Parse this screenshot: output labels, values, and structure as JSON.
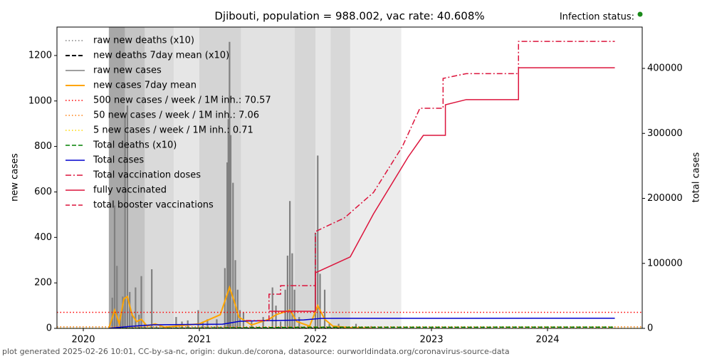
{
  "chart_data": {
    "type": "line",
    "title": "Djibouti, population = 988.002, vac rate: 40.608%",
    "status_label": "Infection status:",
    "status_color": "#1a8a1a",
    "ylabel": "new cases",
    "y2label": "total cases",
    "footer": "plot generated 2025-02-26 10:01, CC-by-sa-nc, origin: dukun.de/corona, datasource: ourworldindata.org/coronavirus-source-data",
    "xlim": [
      2019.773,
      2024.816
    ],
    "xticks": [
      2020,
      2021,
      2022,
      2023,
      2024
    ],
    "ylim": [
      0,
      1325
    ],
    "yticks": [
      0,
      200,
      400,
      600,
      800,
      1000,
      1200
    ],
    "y2lim": [
      0,
      463600
    ],
    "y2ticks": [
      0,
      100000,
      200000,
      300000,
      400000
    ],
    "legend": "upper left",
    "spans": [
      {
        "start": 2020.22,
        "end": 2020.36,
        "color": "#a8a8a8"
      },
      {
        "start": 2020.36,
        "end": 2020.53,
        "color": "#c4c4c4"
      },
      {
        "start": 2020.53,
        "end": 2020.78,
        "color": "#dadada"
      },
      {
        "start": 2020.78,
        "end": 2021.0,
        "color": "#e6e6e6"
      },
      {
        "start": 2021.0,
        "end": 2021.36,
        "color": "#d4d4d4"
      },
      {
        "start": 2021.36,
        "end": 2021.82,
        "color": "#e2e2e2"
      },
      {
        "start": 2021.82,
        "end": 2022.0,
        "color": "#d6d6d6"
      },
      {
        "start": 2022.0,
        "end": 2022.13,
        "color": "#e6e6e6"
      },
      {
        "start": 2022.13,
        "end": 2022.3,
        "color": "#d8d8d8"
      },
      {
        "start": 2022.3,
        "end": 2022.74,
        "color": "#ececec"
      }
    ],
    "series": [
      {
        "name": "raw new deaths (x10)",
        "kind": "line",
        "style": "dotted",
        "color": "#808080",
        "width": 1.5,
        "x": [
          2020.25,
          2022.5
        ],
        "values": [
          0,
          0
        ]
      },
      {
        "name": "new deaths 7day mean (x10)",
        "kind": "line",
        "style": "dashed",
        "color": "#000000",
        "width": 2,
        "x": [
          2020.25,
          2022.5
        ],
        "values": [
          0,
          0
        ]
      },
      {
        "name": "raw new cases",
        "kind": "bars",
        "style": "solid",
        "color": "#808080",
        "width": 1.5,
        "x": [
          2020.25,
          2020.27,
          2020.29,
          2020.32,
          2020.34,
          2020.36,
          2020.38,
          2020.4,
          2020.42,
          2020.45,
          2020.48,
          2020.5,
          2020.53,
          2020.59,
          2020.63,
          2020.8,
          2020.85,
          2020.9,
          2020.99,
          2021.03,
          2021.07,
          2021.15,
          2021.22,
          2021.24,
          2021.25,
          2021.26,
          2021.27,
          2021.29,
          2021.31,
          2021.33,
          2021.35,
          2021.38,
          2021.45,
          2021.55,
          2021.63,
          2021.66,
          2021.7,
          2021.74,
          2021.76,
          2021.78,
          2021.8,
          2021.82,
          2021.86,
          2022.0,
          2022.02,
          2022.04,
          2022.08,
          2022.12,
          2022.2,
          2022.35,
          2022.48
        ],
        "values": [
          135,
          540,
          275,
          60,
          140,
          930,
          980,
          160,
          70,
          180,
          60,
          230,
          20,
          260,
          10,
          50,
          30,
          35,
          80,
          30,
          40,
          40,
          265,
          730,
          920,
          1260,
          850,
          640,
          300,
          170,
          80,
          70,
          30,
          50,
          180,
          100,
          30,
          170,
          320,
          560,
          330,
          170,
          50,
          420,
          760,
          240,
          170,
          20,
          20,
          20,
          10
        ]
      },
      {
        "name": "new cases 7day mean",
        "kind": "line",
        "style": "solid",
        "color": "#ffa500",
        "width": 2,
        "x": [
          2020.22,
          2020.27,
          2020.31,
          2020.35,
          2020.38,
          2020.42,
          2020.46,
          2020.5,
          2020.55,
          2020.62,
          2020.7,
          2021.0,
          2021.18,
          2021.26,
          2021.3,
          2021.34,
          2021.45,
          2021.6,
          2021.66,
          2021.78,
          2021.84,
          2021.95,
          2022.02,
          2022.08,
          2022.15,
          2022.3,
          2022.5
        ],
        "values": [
          0,
          80,
          20,
          130,
          140,
          60,
          30,
          40,
          10,
          20,
          5,
          20,
          60,
          180,
          120,
          50,
          15,
          40,
          60,
          80,
          30,
          10,
          100,
          40,
          10,
          3,
          0
        ]
      },
      {
        "name": "500 new cases / week / 1M inh.: 70.57",
        "kind": "hline",
        "style": "dotted",
        "color": "#ff0000",
        "width": 1.5,
        "value": 70.57
      },
      {
        "name": "50 new cases / week / 1M inh.: 7.06",
        "kind": "hline",
        "style": "dotted",
        "color": "#ff7f0e",
        "width": 1.5,
        "value": 7.06
      },
      {
        "name": "5 new cases / week / 1M inh.: 0.71",
        "kind": "hline",
        "style": "dotted",
        "color": "#ffd700",
        "width": 1.5,
        "value": 0.71
      },
      {
        "name": "Total deaths (x10)",
        "kind": "line",
        "style": "dashed",
        "color": "#008000",
        "width": 1.5,
        "axis": "y2",
        "x": [
          2020.22,
          2021.0,
          2022.0,
          2024.58
        ],
        "values": [
          0,
          600,
          1800,
          1890
        ]
      },
      {
        "name": "Total cases",
        "kind": "line",
        "style": "solid",
        "color": "#0000cd",
        "width": 1.5,
        "axis": "y2",
        "x": [
          2020.22,
          2020.4,
          2020.6,
          2021.2,
          2021.35,
          2021.9,
          2022.05,
          2022.2,
          2024.58
        ],
        "values": [
          0,
          3000,
          5500,
          6500,
          11000,
          13000,
          15300,
          15500,
          15600
        ]
      },
      {
        "name": "Total vaccination doses",
        "kind": "line",
        "style": "dashdot",
        "color": "#dc143c",
        "width": 1.5,
        "axis": "y2",
        "x": [
          2021.4,
          2021.6,
          2021.6,
          2021.7,
          2021.7,
          2022.0,
          2022.0,
          2022.25,
          2022.5,
          2022.75,
          2022.9,
          2023.0,
          2023.1,
          2023.1,
          2023.3,
          2023.75,
          2023.75,
          2024.58
        ],
        "values": [
          12000,
          12000,
          52600,
          52600,
          65700,
          65700,
          149000,
          170000,
          209000,
          280000,
          338600,
          338600,
          338600,
          384600,
          392000,
          392000,
          441600,
          441600
        ]
      },
      {
        "name": "fully vaccinated",
        "kind": "line",
        "style": "solid",
        "color": "#dc143c",
        "width": 1.5,
        "axis": "y2",
        "x": [
          2021.6,
          2022.0,
          2022.0,
          2022.3,
          2022.5,
          2022.8,
          2022.93,
          2023.12,
          2023.12,
          2023.3,
          2023.75,
          2023.75,
          2024.58
        ],
        "values": [
          26300,
          26300,
          85500,
          110000,
          176000,
          264000,
          297000,
          297000,
          344000,
          352000,
          352000,
          401000,
          401000
        ]
      },
      {
        "name": "total booster vaccinations",
        "kind": "line",
        "style": "dashed",
        "color": "#dc143c",
        "width": 1.5,
        "axis": "y2",
        "x": [],
        "values": []
      }
    ]
  }
}
